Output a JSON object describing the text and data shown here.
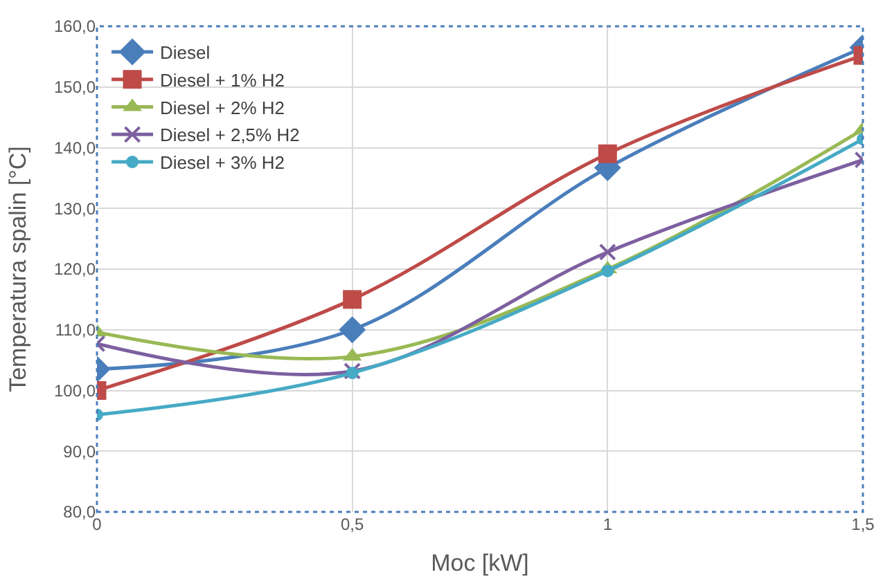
{
  "chart_data": {
    "type": "line",
    "xlabel": "Moc [kW]",
    "ylabel": "Temperatura spalin [°C]",
    "x": [
      0,
      0.5,
      1,
      1.5
    ],
    "xlim": [
      0,
      1.5
    ],
    "xticks": [
      {
        "value": 0,
        "label": "0"
      },
      {
        "value": 0.5,
        "label": "0,5"
      },
      {
        "value": 1,
        "label": "1"
      },
      {
        "value": 1.5,
        "label": "1,5"
      }
    ],
    "ylim": [
      80,
      160
    ],
    "yticks": [
      {
        "value": 80,
        "label": "80,0"
      },
      {
        "value": 90,
        "label": "90,0"
      },
      {
        "value": 100,
        "label": "100,0"
      },
      {
        "value": 110,
        "label": "110,0"
      },
      {
        "value": 120,
        "label": "120,0"
      },
      {
        "value": 130,
        "label": "130,0"
      },
      {
        "value": 140,
        "label": "140,0"
      },
      {
        "value": 150,
        "label": "150,0"
      },
      {
        "value": 160,
        "label": "160,0"
      }
    ],
    "grid": true,
    "legend": "top left",
    "line_style": "solid",
    "series": [
      {
        "name": "Diesel",
        "color": "#4a7ebb",
        "marker": "diamond",
        "values": [
          103.5,
          110,
          136.7,
          156.5
        ]
      },
      {
        "name": "Diesel + 1% H2",
        "color": "#be4b48",
        "marker": "square",
        "values": [
          100,
          115,
          139,
          155.2
        ]
      },
      {
        "name": "Diesel + 2% H2",
        "color": "#98b954",
        "marker": "triangle",
        "values": [
          109.6,
          105.6,
          120,
          143
        ]
      },
      {
        "name": "Diesel + 2,5% H2",
        "color": "#7d60a0",
        "marker": "cross",
        "values": [
          107.7,
          103.2,
          122.8,
          138
        ]
      },
      {
        "name": "Diesel + 3% H2",
        "color": "#46aac5",
        "marker": "circle",
        "values": [
          96,
          102.9,
          119.7,
          141.4
        ]
      }
    ]
  }
}
